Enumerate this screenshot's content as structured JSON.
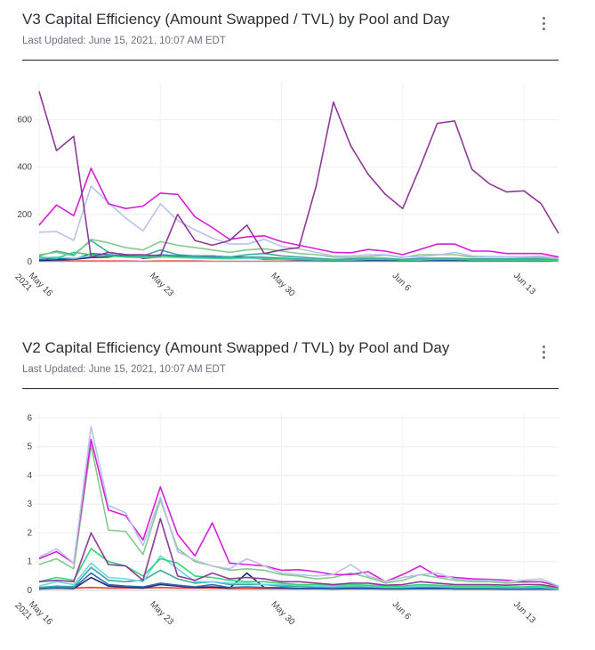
{
  "charts": [
    {
      "title": "V3 Capital Efficiency (Amount Swapped / TVL) by Pool and Day",
      "last_updated": "Last Updated: June 15, 2021, 10:07 AM EDT"
    },
    {
      "title": "V2 Capital Efficiency (Amount Swapped / TVL) by Pool and Day",
      "last_updated": "Last Updated: June 15, 2021, 10:07 AM EDT"
    }
  ],
  "chart_data": [
    {
      "type": "line",
      "title": "V3 Capital Efficiency (Amount Swapped / TVL) by Pool and Day",
      "xlabel": "",
      "ylabel": "",
      "ylim": [
        0,
        760
      ],
      "grid": true,
      "legend": "none",
      "x_ticks": [
        {
          "x": 0,
          "label": "May 16",
          "sub": "2021"
        },
        {
          "x": 7,
          "label": "May 23"
        },
        {
          "x": 14,
          "label": "May 30"
        },
        {
          "x": 21,
          "label": "Jun 6"
        },
        {
          "x": 28,
          "label": "Jun 13"
        }
      ],
      "y_ticks": [
        0,
        200,
        400,
        600
      ],
      "series": [
        {
          "color": "#8e3a96",
          "values": [
            720,
            470,
            530,
            20,
            40,
            30,
            30,
            25,
            200,
            90,
            70,
            90,
            155,
            35,
            50,
            60,
            320,
            675,
            490,
            370,
            285,
            225,
            400,
            585,
            595,
            390,
            330,
            295,
            300,
            245,
            120
          ]
        },
        {
          "color": "#d71fd8",
          "values": [
            155,
            240,
            195,
            395,
            245,
            225,
            235,
            290,
            285,
            190,
            145,
            95,
            105,
            110,
            85,
            70,
            55,
            40,
            38,
            52,
            45,
            30,
            52,
            75,
            75,
            45,
            45,
            35,
            35,
            35,
            20
          ]
        },
        {
          "color": "#b9c2ea",
          "values": [
            125,
            128,
            90,
            320,
            250,
            185,
            130,
            245,
            175,
            135,
            100,
            75,
            75,
            95,
            65,
            55,
            40,
            25,
            25,
            30,
            30,
            20,
            22,
            28,
            40,
            25,
            22,
            22,
            22,
            25,
            15
          ]
        },
        {
          "color": "#86c98e",
          "values": [
            30,
            40,
            25,
            95,
            80,
            60,
            50,
            85,
            70,
            60,
            50,
            40,
            50,
            55,
            45,
            35,
            30,
            20,
            18,
            22,
            28,
            18,
            30,
            30,
            30,
            20,
            20,
            20,
            18,
            18,
            12
          ]
        },
        {
          "color": "#3fa7a0",
          "values": [
            25,
            45,
            30,
            90,
            40,
            30,
            25,
            50,
            30,
            25,
            25,
            20,
            30,
            35,
            25,
            20,
            15,
            10,
            12,
            15,
            15,
            10,
            15,
            15,
            15,
            12,
            12,
            12,
            12,
            12,
            8
          ]
        },
        {
          "color": "#33d676",
          "values": [
            20,
            15,
            40,
            30,
            25,
            20,
            18,
            25,
            20,
            18,
            15,
            15,
            18,
            15,
            12,
            10,
            10,
            8,
            10,
            10,
            10,
            8,
            10,
            10,
            10,
            8,
            8,
            8,
            8,
            8,
            6
          ]
        },
        {
          "color": "#6fd6e6",
          "values": [
            15,
            20,
            15,
            25,
            25,
            20,
            18,
            20,
            18,
            15,
            15,
            12,
            15,
            12,
            10,
            10,
            8,
            8,
            8,
            10,
            10,
            8,
            8,
            10,
            10,
            8,
            8,
            8,
            8,
            8,
            6
          ]
        },
        {
          "color": "#2b6fb8",
          "values": [
            10,
            15,
            10,
            35,
            30,
            25,
            20,
            30,
            25,
            20,
            18,
            15,
            20,
            18,
            15,
            12,
            10,
            8,
            8,
            10,
            10,
            8,
            8,
            10,
            10,
            8,
            8,
            8,
            8,
            10,
            6
          ]
        },
        {
          "color": "#1b2b70",
          "values": [
            5,
            8,
            10,
            18,
            20,
            30,
            15,
            20,
            25,
            25,
            25,
            20,
            20,
            10,
            10,
            8,
            6,
            5,
            5,
            6,
            6,
            5,
            5,
            6,
            6,
            5,
            5,
            5,
            5,
            5,
            4
          ]
        },
        {
          "color": "#e53935",
          "values": [
            2,
            2,
            3,
            3,
            3,
            3,
            2,
            3,
            3,
            3,
            2,
            2,
            2,
            2,
            2,
            2,
            2,
            2,
            2,
            2,
            2,
            2,
            2,
            2,
            2,
            2,
            2,
            2,
            2,
            2,
            2
          ]
        }
      ]
    },
    {
      "type": "line",
      "title": "V2 Capital Efficiency (Amount Swapped / TVL) by Pool and Day",
      "xlabel": "",
      "ylabel": "",
      "ylim": [
        0,
        6.2
      ],
      "grid": true,
      "legend": "none",
      "x_ticks": [
        {
          "x": 0,
          "label": "May 16",
          "sub": "2021"
        },
        {
          "x": 7,
          "label": "May 23"
        },
        {
          "x": 14,
          "label": "May 30"
        },
        {
          "x": 21,
          "label": "Jun 6"
        },
        {
          "x": 28,
          "label": "Jun 13"
        }
      ],
      "y_ticks": [
        0,
        1,
        2,
        3,
        4,
        5,
        6
      ],
      "series": [
        {
          "color": "#b9c2ea",
          "values": [
            1.15,
            1.45,
            0.95,
            5.7,
            2.95,
            2.7,
            1.55,
            3.25,
            1.35,
            1.05,
            0.85,
            0.75,
            1.1,
            0.85,
            0.6,
            0.55,
            0.5,
            0.55,
            0.9,
            0.5,
            0.3,
            0.45,
            0.55,
            0.6,
            0.4,
            0.35,
            0.35,
            0.3,
            0.35,
            0.4,
            0.15
          ]
        },
        {
          "color": "#d71fd8",
          "values": [
            1.1,
            1.35,
            0.95,
            5.25,
            2.8,
            2.6,
            1.75,
            3.6,
            1.95,
            1.2,
            2.35,
            0.95,
            0.9,
            0.85,
            0.7,
            0.72,
            0.65,
            0.55,
            0.55,
            0.65,
            0.3,
            0.55,
            0.85,
            0.5,
            0.45,
            0.4,
            0.38,
            0.35,
            0.3,
            0.3,
            0.15
          ]
        },
        {
          "color": "#86c98e",
          "values": [
            0.9,
            1.1,
            0.75,
            5.05,
            2.1,
            2.05,
            1.25,
            3.15,
            1.45,
            1.0,
            0.85,
            0.7,
            0.75,
            0.7,
            0.55,
            0.5,
            0.4,
            0.45,
            0.6,
            0.45,
            0.25,
            0.35,
            0.55,
            0.45,
            0.35,
            0.3,
            0.3,
            0.25,
            0.28,
            0.3,
            0.12
          ]
        },
        {
          "color": "#8e3a96",
          "values": [
            0.3,
            0.35,
            0.3,
            2.0,
            0.9,
            0.85,
            0.35,
            2.5,
            0.5,
            0.35,
            0.6,
            0.4,
            0.45,
            0.4,
            0.3,
            0.3,
            0.25,
            0.2,
            0.25,
            0.25,
            0.18,
            0.2,
            0.3,
            0.25,
            0.2,
            0.2,
            0.2,
            0.18,
            0.2,
            0.2,
            0.1
          ]
        },
        {
          "color": "#33d676",
          "values": [
            0.3,
            0.45,
            0.35,
            1.45,
            1.0,
            0.85,
            0.5,
            1.1,
            0.95,
            0.5,
            0.45,
            0.35,
            0.3,
            0.3,
            0.25,
            0.2,
            0.2,
            0.18,
            0.2,
            0.18,
            0.15,
            0.15,
            0.2,
            0.18,
            0.15,
            0.15,
            0.15,
            0.12,
            0.12,
            0.15,
            0.08
          ]
        },
        {
          "color": "#6fd6e6",
          "values": [
            0.15,
            0.3,
            0.2,
            0.95,
            0.45,
            0.4,
            0.3,
            1.2,
            0.75,
            0.3,
            0.3,
            0.25,
            0.25,
            0.2,
            0.2,
            0.18,
            0.15,
            0.15,
            0.18,
            0.15,
            0.12,
            0.12,
            0.15,
            0.15,
            0.12,
            0.12,
            0.12,
            0.1,
            0.1,
            0.12,
            0.06
          ]
        },
        {
          "color": "#3fa7a0",
          "values": [
            0.1,
            0.15,
            0.12,
            0.8,
            0.35,
            0.3,
            0.35,
            0.7,
            0.4,
            0.25,
            0.3,
            0.2,
            0.2,
            0.2,
            0.15,
            0.15,
            0.12,
            0.12,
            0.12,
            0.12,
            0.1,
            0.1,
            0.12,
            0.12,
            0.1,
            0.1,
            0.1,
            0.1,
            0.1,
            0.1,
            0.05
          ]
        },
        {
          "color": "#2b6fb8",
          "values": [
            0.05,
            0.1,
            0.08,
            0.6,
            0.2,
            0.15,
            0.12,
            0.25,
            0.18,
            0.12,
            0.2,
            0.1,
            0.12,
            0.1,
            0.1,
            0.08,
            0.08,
            0.06,
            0.08,
            0.08,
            0.06,
            0.06,
            0.08,
            0.08,
            0.06,
            0.06,
            0.06,
            0.05,
            0.05,
            0.06,
            0.04
          ]
        },
        {
          "color": "#1b2b70",
          "values": [
            0.05,
            0.08,
            0.06,
            0.45,
            0.15,
            0.12,
            0.08,
            0.2,
            0.15,
            0.1,
            0.12,
            0.08,
            0.6,
            0.1,
            0.08,
            0.06,
            0.06,
            0.05,
            0.06,
            0.06,
            0.05,
            0.05,
            0.06,
            0.06,
            0.05,
            0.05,
            0.05,
            0.04,
            0.04,
            0.05,
            0.03
          ]
        },
        {
          "color": "#e53935",
          "values": [
            0.08,
            0.08,
            0.08,
            0.1,
            0.08,
            0.08,
            0.08,
            0.1,
            0.08,
            0.08,
            0.08,
            0.06,
            0.06,
            0.06,
            0.06,
            0.06,
            0.06,
            0.06,
            0.06,
            0.06,
            0.06,
            0.06,
            0.06,
            0.06,
            0.06,
            0.06,
            0.06,
            0.06,
            0.06,
            0.06,
            0.05
          ]
        }
      ]
    }
  ]
}
